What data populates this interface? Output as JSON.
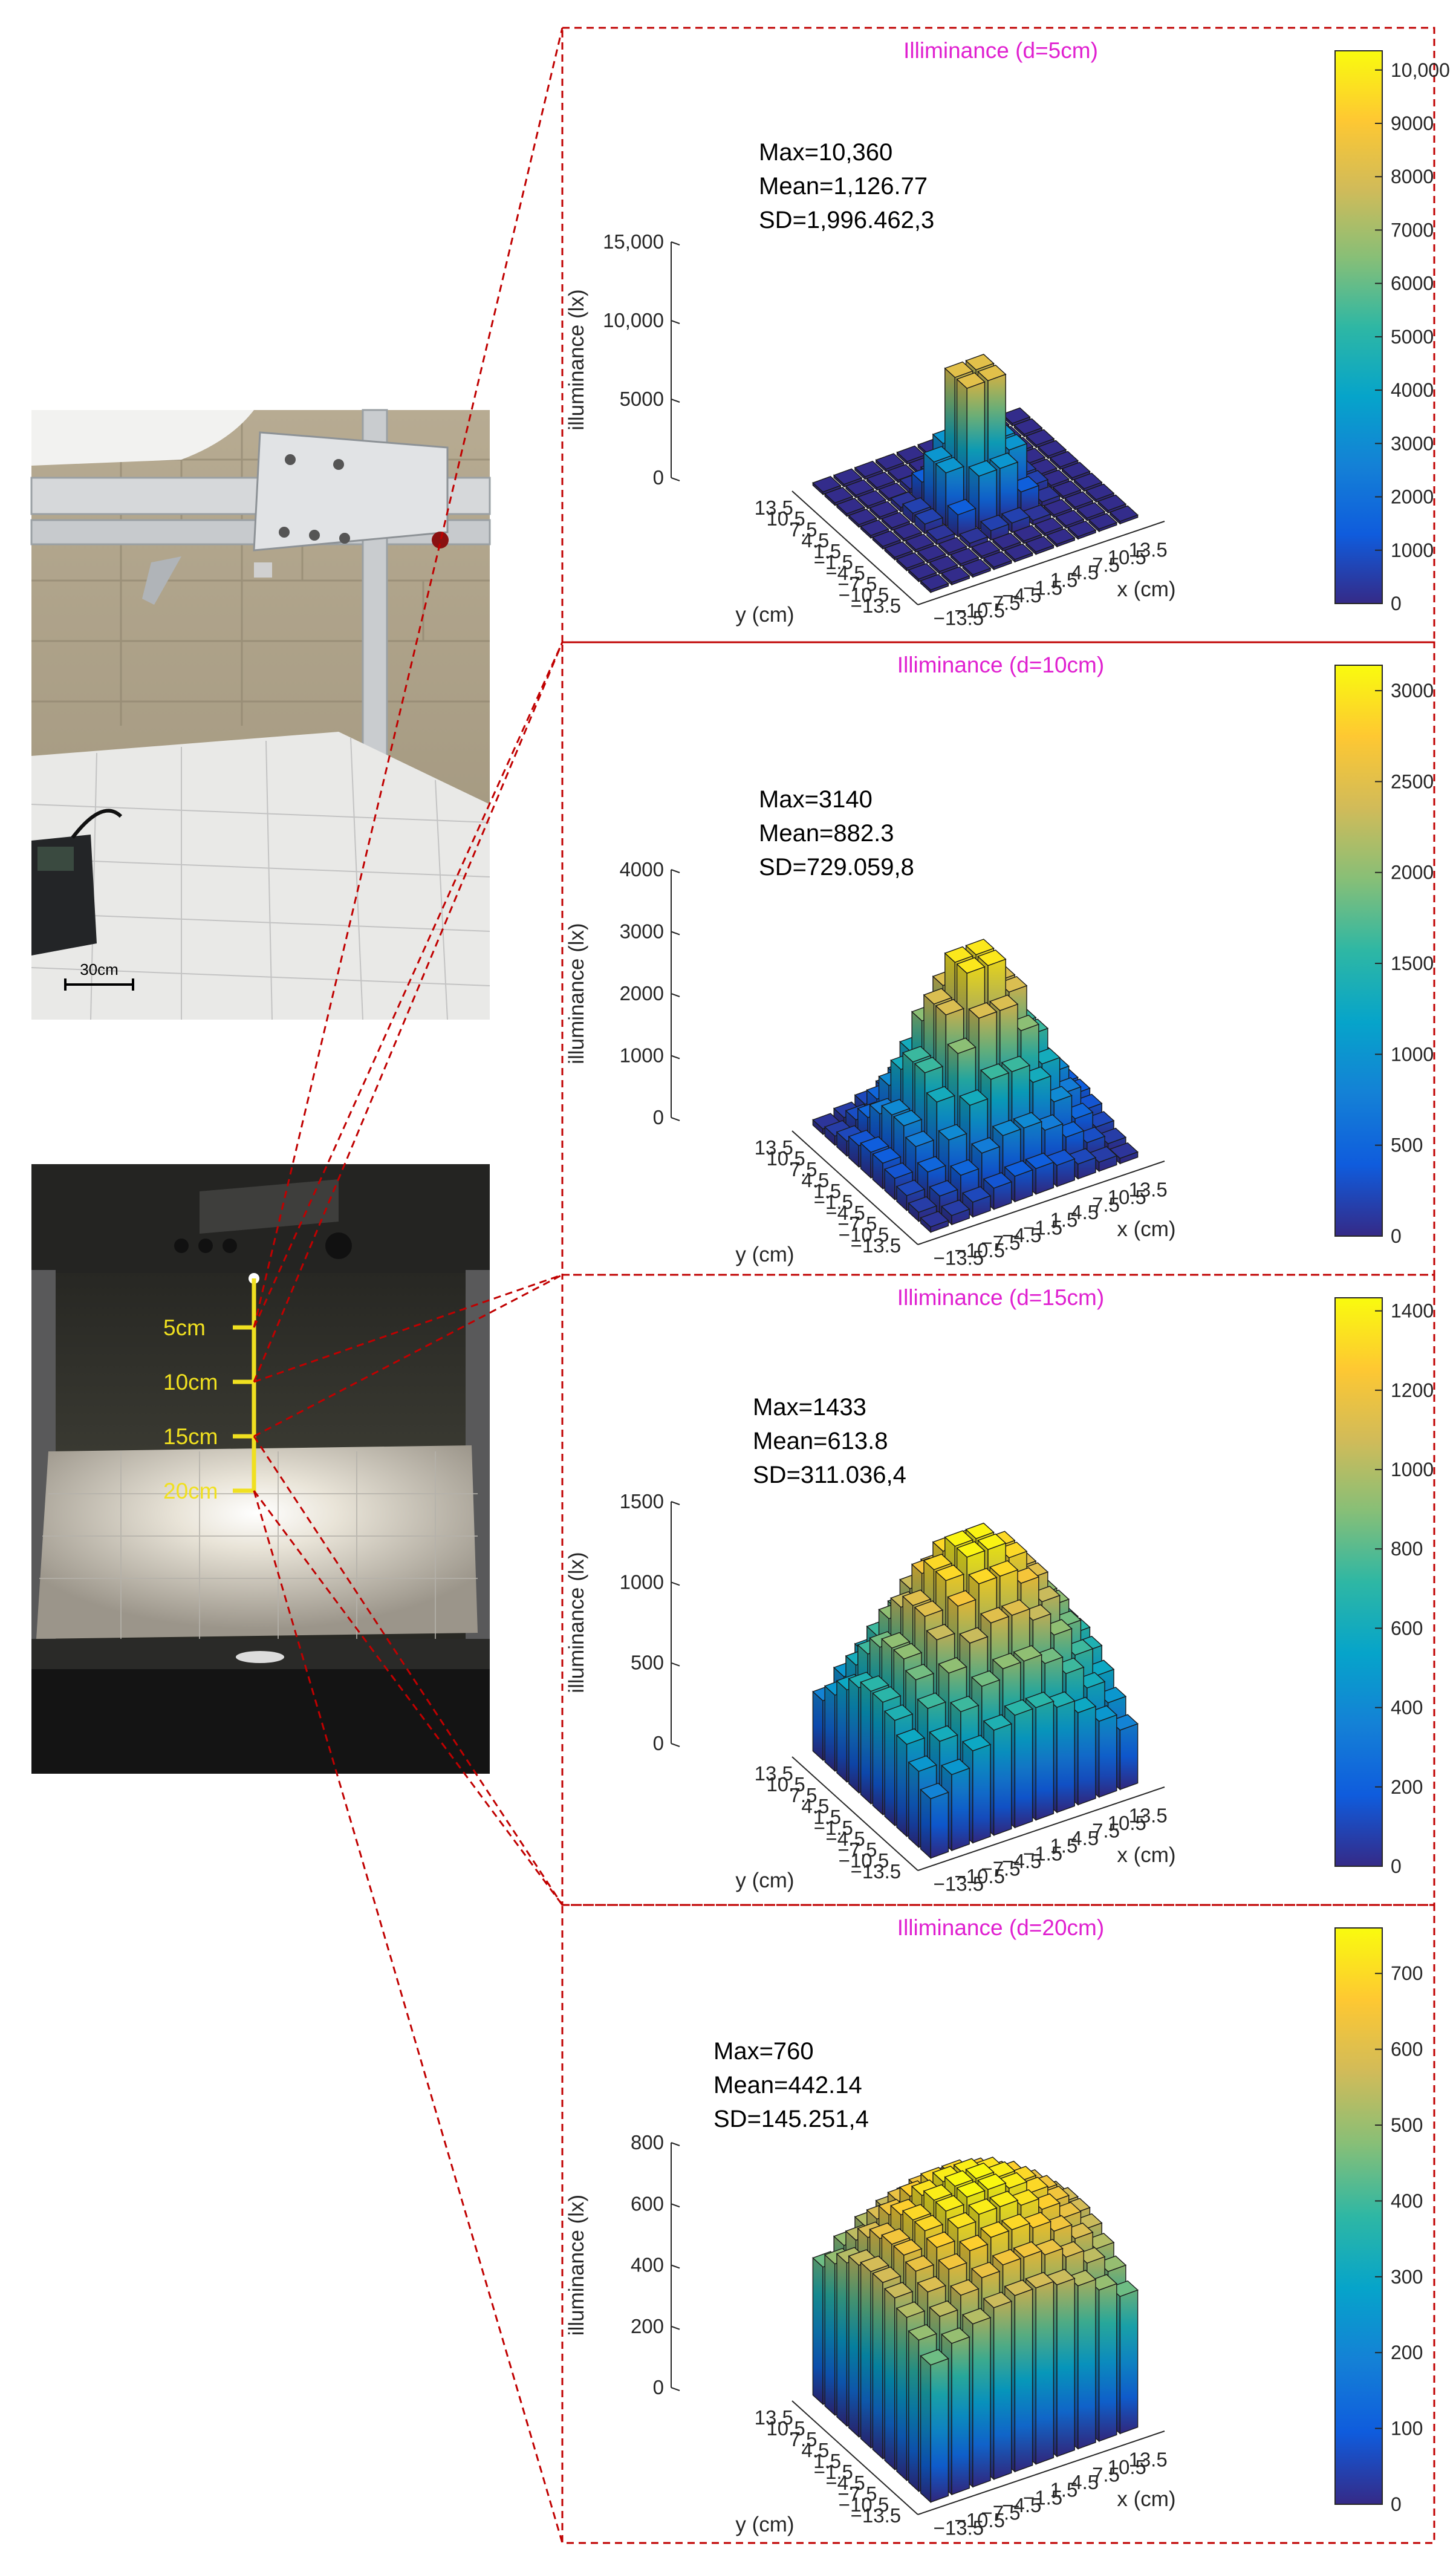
{
  "photos": {
    "top": {
      "scale_label": "30cm"
    },
    "bottom": {
      "height_markers": [
        "5cm",
        "10cm",
        "15cm",
        "20cm"
      ]
    }
  },
  "colors": {
    "title": "#e020d0",
    "connector": "#c00000",
    "marker": "#f0e020",
    "parula": [
      "#352a87",
      "#0f5cdd",
      "#1481d6",
      "#06a4ca",
      "#2eb7a4",
      "#87bf77",
      "#d1bb59",
      "#fec832",
      "#f9fb0e"
    ]
  },
  "axes_labels": {
    "x": "x (cm)",
    "y": "y (cm)",
    "z": "illuminance (lx)"
  },
  "chart_data": [
    {
      "type": "bar3d",
      "title": "Illiminance (d=5cm)",
      "xlabel": "x (cm)",
      "ylabel": "y (cm)",
      "zlabel": "illuminance (lx)",
      "x_ticks": [
        "−13.5",
        "−10.5",
        "−7.5",
        "−4.5",
        "−1.5",
        "1.5",
        "4.5",
        "7.5",
        "10.5",
        "13.5"
      ],
      "y_ticks": [
        "13.5",
        "10.5",
        "7.5",
        "4.5",
        "1.5",
        "−1.5",
        "−4.5",
        "−7.5",
        "−10.5",
        "−13.5"
      ],
      "z_ticks": [
        "0",
        "5000",
        "10,000",
        "15,000"
      ],
      "zlim": [
        0,
        15000
      ],
      "colorbar_ticks": [
        0,
        1000,
        2000,
        3000,
        4000,
        5000,
        6000,
        7000,
        8000,
        9000,
        10000
      ],
      "colorbar_labels": [
        "0",
        "1000",
        "2000",
        "3000",
        "4000",
        "5000",
        "6000",
        "7000",
        "8000",
        "9000",
        "10,000"
      ],
      "clim": [
        0,
        10360
      ],
      "stats": [
        "Max=10,360",
        "Mean=1,126.77",
        "SD=1,996.462,3"
      ],
      "max": 10360,
      "mean": 1126.77
    },
    {
      "type": "bar3d",
      "title": "Illiminance (d=10cm)",
      "xlabel": "x (cm)",
      "ylabel": "y (cm)",
      "zlabel": "illuminance (lx)",
      "x_ticks": [
        "−13.5",
        "−10.5",
        "−7.5",
        "−4.5",
        "−1.5",
        "1.5",
        "4.5",
        "7.5",
        "10.5",
        "13.5"
      ],
      "y_ticks": [
        "13.5",
        "10.5",
        "7.5",
        "4.5",
        "1.5",
        "−1.5",
        "−4.5",
        "−7.5",
        "−10.5",
        "−13.5"
      ],
      "z_ticks": [
        "0",
        "1000",
        "2000",
        "3000",
        "4000"
      ],
      "zlim": [
        0,
        4000
      ],
      "colorbar_ticks": [
        0,
        500,
        1000,
        1500,
        2000,
        2500,
        3000
      ],
      "colorbar_labels": [
        "0",
        "500",
        "1000",
        "1500",
        "2000",
        "2500",
        "3000"
      ],
      "clim": [
        0,
        3140
      ],
      "stats": [
        "Max=3140",
        "Mean=882.3",
        "SD=729.059,8"
      ],
      "max": 3140,
      "mean": 882.3
    },
    {
      "type": "bar3d",
      "title": "Illiminance (d=15cm)",
      "xlabel": "x (cm)",
      "ylabel": "y (cm)",
      "zlabel": "illuminance (lx)",
      "x_ticks": [
        "−13.5",
        "−10.5",
        "−7.5",
        "−4.5",
        "−1.5",
        "1.5",
        "4.5",
        "7.5",
        "10.5",
        "13.5"
      ],
      "y_ticks": [
        "13.5",
        "10.5",
        "7.5",
        "4.5",
        "1.5",
        "−1.5",
        "−4.5",
        "−7.5",
        "−10.5",
        "−13.5"
      ],
      "z_ticks": [
        "0",
        "500",
        "1000",
        "1500"
      ],
      "zlim": [
        0,
        1500
      ],
      "colorbar_ticks": [
        0,
        200,
        400,
        600,
        800,
        1000,
        1200,
        1400
      ],
      "colorbar_labels": [
        "0",
        "200",
        "400",
        "600",
        "800",
        "1000",
        "1200",
        "1400"
      ],
      "clim": [
        0,
        1433
      ],
      "stats": [
        "Max=1433",
        "Mean=613.8",
        "SD=311.036,4"
      ],
      "max": 1433,
      "mean": 613.8
    },
    {
      "type": "bar3d",
      "title": "Illiminance (d=20cm)",
      "xlabel": "x (cm)",
      "ylabel": "y (cm)",
      "zlabel": "illuminance (lx)",
      "x_ticks": [
        "−13.5",
        "−10.5",
        "−7.5",
        "−4.5",
        "−1.5",
        "1.5",
        "4.5",
        "7.5",
        "10.5",
        "13.5"
      ],
      "y_ticks": [
        "13.5",
        "10.5",
        "7.5",
        "4.5",
        "1.5",
        "−1.5",
        "−4.5",
        "−7.5",
        "−10.5",
        "−13.5"
      ],
      "z_ticks": [
        "0",
        "200",
        "400",
        "600",
        "800"
      ],
      "zlim": [
        0,
        800
      ],
      "colorbar_ticks": [
        0,
        100,
        200,
        300,
        400,
        500,
        600,
        700
      ],
      "colorbar_labels": [
        "0",
        "100",
        "200",
        "300",
        "400",
        "500",
        "600",
        "700"
      ],
      "clim": [
        0,
        760
      ],
      "stats": [
        "Max=760",
        "Mean=442.14",
        "SD=145.251,4"
      ],
      "max": 760,
      "mean": 442.14
    }
  ]
}
